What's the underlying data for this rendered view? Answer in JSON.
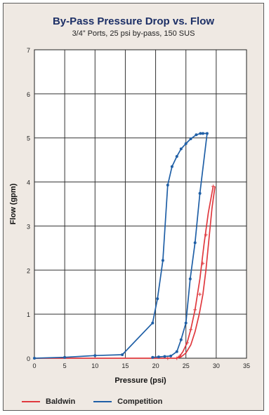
{
  "chart_data": {
    "type": "line",
    "title": "By-Pass Pressure Drop vs. Flow",
    "subtitle": "3/4” Ports, 25 psi by-pass, 150 SUS",
    "xlabel": "Pressure (psi)",
    "ylabel": "Flow (gpm)",
    "xlim": [
      0,
      35
    ],
    "ylim": [
      0,
      7
    ],
    "xticks": [
      "0",
      "5",
      "10",
      "15",
      "20",
      "25",
      "30",
      "35"
    ],
    "yticks": [
      "0",
      "1",
      "2",
      "3",
      "4",
      "5",
      "6",
      "7"
    ],
    "grid": true,
    "legend_position": "bottom",
    "series": [
      {
        "name": "Baldwin",
        "color": "#e0393e",
        "marker": "plus",
        "points": [
          [
            0,
            0
          ],
          [
            5,
            0
          ],
          [
            10,
            0
          ],
          [
            15,
            0
          ],
          [
            20,
            0
          ],
          [
            22,
            0
          ],
          [
            23.5,
            0
          ],
          [
            24,
            0.05
          ],
          [
            24.5,
            0.15
          ],
          [
            25.2,
            0.35
          ],
          [
            25.8,
            0.65
          ],
          [
            26.5,
            1.1
          ],
          [
            27.3,
            1.8
          ],
          [
            28,
            2.6
          ],
          [
            28.7,
            3.3
          ],
          [
            29.5,
            3.9
          ]
        ],
        "marked": [
          [
            22,
            0
          ],
          [
            23.5,
            0
          ],
          [
            24,
            0.05
          ],
          [
            25.2,
            0.35
          ],
          [
            25.8,
            0.65
          ],
          [
            26.5,
            1.1
          ],
          [
            27.3,
            1.45
          ],
          [
            27.8,
            2.15
          ],
          [
            28.3,
            2.8
          ],
          [
            29.5,
            3.9
          ]
        ]
      },
      {
        "name": "Baldwin",
        "color": "#e0393e",
        "marker": "none",
        "points": [
          [
            23.5,
            0
          ],
          [
            24.2,
            0.03
          ],
          [
            25,
            0.12
          ],
          [
            25.8,
            0.3
          ],
          [
            26.5,
            0.6
          ],
          [
            27.2,
            1.0
          ],
          [
            27.8,
            1.45
          ],
          [
            28.3,
            2.0
          ],
          [
            28.8,
            2.7
          ],
          [
            29.3,
            3.4
          ],
          [
            29.8,
            3.9
          ]
        ],
        "marked": []
      },
      {
        "name": "Competition",
        "color": "#1f5fa6",
        "marker": "dot",
        "points": [
          [
            0,
            0
          ],
          [
            5,
            0.02
          ],
          [
            10,
            0.06
          ],
          [
            14.5,
            0.08
          ],
          [
            19.5,
            0.8
          ],
          [
            20.3,
            1.35
          ],
          [
            21.2,
            2.22
          ],
          [
            22,
            3.93
          ],
          [
            22.7,
            4.35
          ],
          [
            23.5,
            4.58
          ],
          [
            24.2,
            4.75
          ],
          [
            25,
            4.87
          ],
          [
            25.8,
            4.98
          ],
          [
            26.7,
            5.07
          ],
          [
            27.4,
            5.1
          ],
          [
            27.8,
            5.1
          ],
          [
            28.5,
            5.1
          ],
          [
            27.3,
            3.74
          ],
          [
            26.5,
            2.62
          ],
          [
            25.7,
            1.8
          ],
          [
            25,
            0.8
          ],
          [
            24.2,
            0.42
          ],
          [
            23.5,
            0.15
          ],
          [
            22.5,
            0.05
          ],
          [
            21.5,
            0.04
          ],
          [
            20.5,
            0.03
          ],
          [
            19.5,
            0.02
          ]
        ]
      }
    ]
  },
  "legend": {
    "items": [
      {
        "label": "Baldwin",
        "color": "#e0393e"
      },
      {
        "label": "Competition",
        "color": "#1f5fa6"
      }
    ]
  }
}
